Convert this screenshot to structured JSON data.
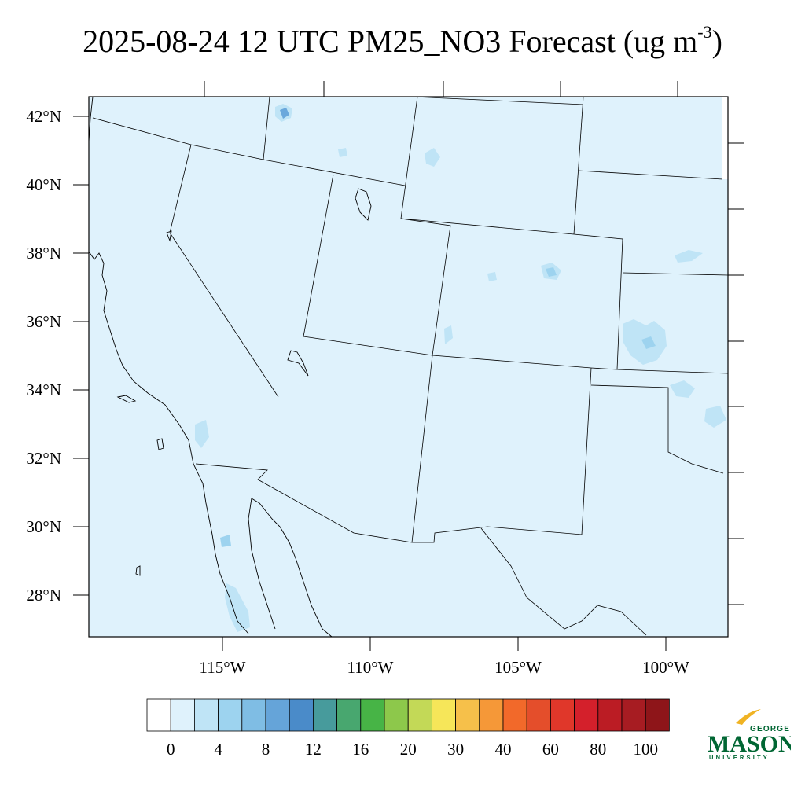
{
  "title": {
    "main": "2025-08-24 12 UTC PM25_NO3 Forecast (ug m",
    "superscript": "-3",
    "close": ")"
  },
  "map": {
    "lat_labels": [
      "42°N",
      "40°N",
      "38°N",
      "36°N",
      "34°N",
      "32°N",
      "30°N",
      "28°N"
    ],
    "lon_labels": [
      "115°W",
      "110°W",
      "105°W",
      "100°W"
    ],
    "field_color": "#dff2fc",
    "patch_color_light": "#bfe4f6",
    "patch_color_mid": "#9dd3ef",
    "patch_color_dark": "#6aa8dc"
  },
  "colorbar": {
    "labels": [
      "0",
      "4",
      "8",
      "12",
      "16",
      "20",
      "30",
      "40",
      "60",
      "80",
      "100"
    ],
    "colors": [
      "#ffffff",
      "#dff2fc",
      "#bfe4f6",
      "#9dd3ef",
      "#7fbde4",
      "#65a4d9",
      "#4a8bc9",
      "#479b9c",
      "#48a76f",
      "#47b446",
      "#8dc84b",
      "#c3d957",
      "#f6e659",
      "#f6c04a",
      "#f59838",
      "#f2692a",
      "#e44e2b",
      "#e0372a",
      "#d4202b",
      "#bb1c24",
      "#a71c22",
      "#8e1519"
    ]
  },
  "logo": {
    "line1": "GEORGE",
    "line2": "MASON",
    "line3": "UNIVERSITY",
    "green": "#006633",
    "gold": "#f0b323"
  }
}
